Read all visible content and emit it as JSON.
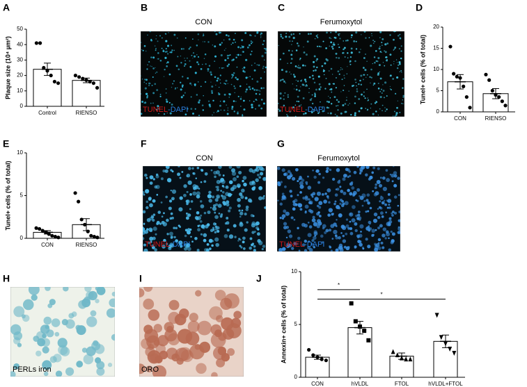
{
  "chart_data": [
    {
      "type": "bar",
      "panel": "A",
      "ylabel": "Plaque size (10⁴ µm²)",
      "categories": [
        "Control",
        "RIENSO"
      ],
      "values": [
        24,
        16.8
      ],
      "errors": [
        4,
        1.5
      ],
      "color": "#ffffff",
      "points": [
        [
          41,
          41,
          25,
          23,
          20,
          16,
          15
        ],
        [
          20,
          19,
          18,
          17,
          16,
          15,
          12
        ]
      ],
      "markers": [
        "circle",
        "circle"
      ],
      "ylim": [
        0,
        50
      ],
      "yticks": [
        0,
        10,
        20,
        30,
        40,
        50
      ]
    },
    {
      "type": "bar",
      "panel": "D",
      "ylabel": "Tunel+ cells (% of total)",
      "categories": [
        "CON",
        "RIENSO"
      ],
      "values": [
        7.1,
        4.3
      ],
      "errors": [
        1.7,
        1.2
      ],
      "color": "#ffffff",
      "points": [
        [
          15.4,
          9,
          8.3,
          8,
          6,
          3.5,
          1
        ],
        [
          8.8,
          7.5,
          5,
          4,
          3.5,
          2.5,
          1.5
        ]
      ],
      "markers": [
        "circle",
        "circle"
      ],
      "ylim": [
        0,
        20
      ],
      "yticks": [
        0,
        5,
        10,
        15,
        20
      ]
    },
    {
      "type": "bar",
      "panel": "E",
      "ylabel": "Tunel+ cells (% of total)",
      "categories": [
        "CON",
        "RIENSO"
      ],
      "values": [
        0.7,
        1.6
      ],
      "errors": [
        0.2,
        0.7
      ],
      "color": "#ffffff",
      "points": [
        [
          1.2,
          1.1,
          0.9,
          0.7,
          0.5,
          0.3,
          0.2,
          0.1
        ],
        [
          5.3,
          4.3,
          2.2,
          1.6,
          0.8,
          0.3,
          0.2,
          0.1
        ]
      ],
      "markers": [
        "circle",
        "circle"
      ],
      "ylim": [
        0,
        10
      ],
      "yticks": [
        0,
        5,
        10
      ]
    },
    {
      "type": "bar",
      "panel": "J",
      "ylabel": "Annexin+ cells (% of total)",
      "categories": [
        "CON",
        "hVLDL",
        "FTOL",
        "hVLDL+FTOL"
      ],
      "values": [
        1.9,
        4.7,
        2.0,
        3.4
      ],
      "errors": [
        0.2,
        0.6,
        0.3,
        0.6
      ],
      "color": "#ffffff",
      "points": [
        [
          2.6,
          2.1,
          1.9,
          1.7,
          1.6
        ],
        [
          7.0,
          5.3,
          4.8,
          4.4,
          3.5
        ],
        [
          2.4,
          2.1,
          1.8,
          1.7,
          1.7
        ],
        [
          5.9,
          3.8,
          3.2,
          2.7,
          2.3
        ]
      ],
      "markers": [
        "circle",
        "square",
        "triangle",
        "triangle-down"
      ],
      "ylim": [
        0,
        10
      ],
      "yticks": [
        0,
        5,
        10
      ],
      "significance": [
        {
          "label": "*",
          "start": "CON",
          "end": "hVLDL",
          "value": 8.3
        },
        {
          "label": "*",
          "start": "CON",
          "end": "hVLDL+FTOL",
          "value": 7.4
        }
      ]
    }
  ],
  "images": [
    {
      "panel": "B",
      "title": "CON",
      "stain": [
        "TUNEL",
        "-DAPI"
      ]
    },
    {
      "panel": "C",
      "title": "Ferumoxytol",
      "stain": [
        "TUNEL",
        "-DAPI"
      ]
    },
    {
      "panel": "F",
      "title": "CON",
      "stain": [
        "TUNEL",
        "-DAPI"
      ]
    },
    {
      "panel": "G",
      "title": "Ferumoxytol",
      "stain": [
        "TUNEL",
        "-DAPI"
      ]
    },
    {
      "panel": "H",
      "caption": "PERLs iron"
    },
    {
      "panel": "I",
      "caption": "ORO"
    }
  ]
}
